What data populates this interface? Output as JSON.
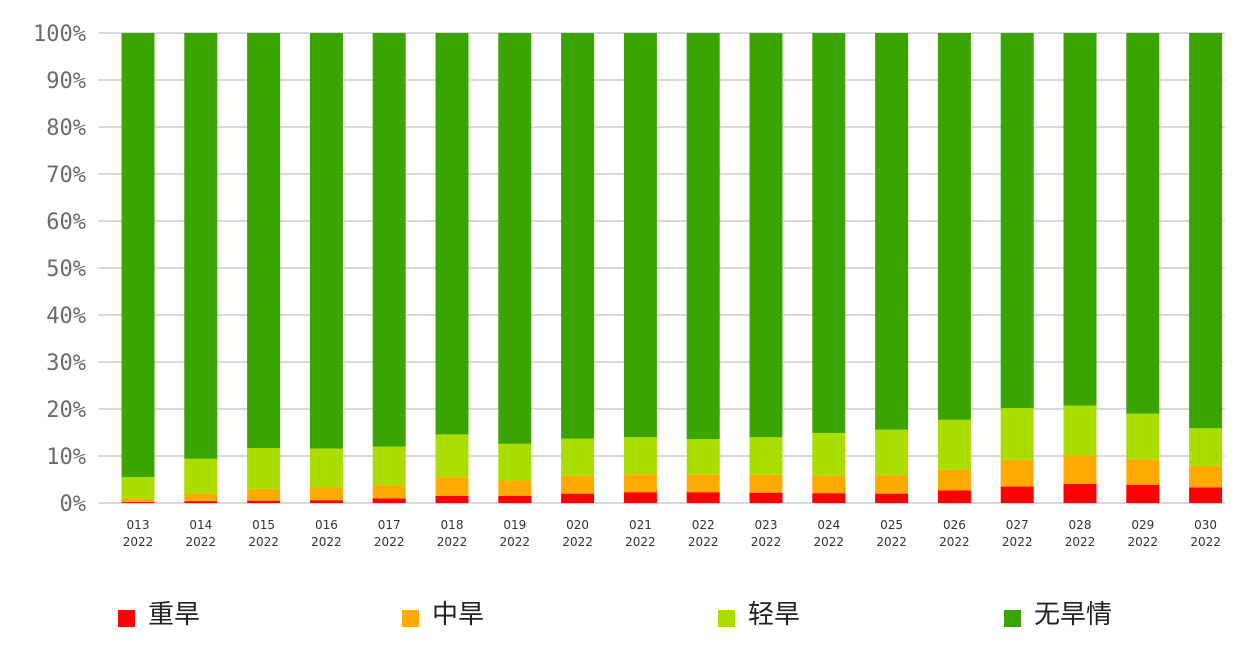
{
  "chart_data": {
    "type": "bar",
    "stacked": true,
    "percent": true,
    "categories": [
      [
        "013",
        "2022"
      ],
      [
        "014",
        "2022"
      ],
      [
        "015",
        "2022"
      ],
      [
        "016",
        "2022"
      ],
      [
        "017",
        "2022"
      ],
      [
        "018",
        "2022"
      ],
      [
        "019",
        "2022"
      ],
      [
        "020",
        "2022"
      ],
      [
        "021",
        "2022"
      ],
      [
        "022",
        "2022"
      ],
      [
        "023",
        "2022"
      ],
      [
        "024",
        "2022"
      ],
      [
        "025",
        "2022"
      ],
      [
        "026",
        "2022"
      ],
      [
        "027",
        "2022"
      ],
      [
        "028",
        "2022"
      ],
      [
        "029",
        "2022"
      ],
      [
        "030",
        "2022"
      ]
    ],
    "series": [
      {
        "name": "重旱",
        "color": "#ff0000",
        "values": [
          0.2,
          0.4,
          0.5,
          0.6,
          1.0,
          1.5,
          1.5,
          2.0,
          2.3,
          2.3,
          2.2,
          2.1,
          2.0,
          2.7,
          3.5,
          4.1,
          3.9,
          3.3
        ]
      },
      {
        "name": "中旱",
        "color": "#ffaa00",
        "values": [
          0.8,
          1.6,
          2.5,
          2.6,
          2.8,
          4.0,
          3.3,
          3.8,
          3.8,
          3.7,
          3.8,
          3.7,
          3.9,
          4.4,
          5.7,
          6.0,
          5.4,
          4.6
        ]
      },
      {
        "name": "轻旱",
        "color": "#aadd00",
        "values": [
          4.5,
          7.4,
          8.7,
          8.4,
          8.2,
          9.1,
          7.8,
          7.9,
          7.9,
          7.6,
          8.0,
          9.1,
          9.7,
          10.6,
          11.0,
          10.6,
          9.7,
          8.0
        ]
      },
      {
        "name": "无旱情",
        "color": "#3aa500",
        "values": [
          94.5,
          90.6,
          88.3,
          88.4,
          88.0,
          85.4,
          87.4,
          86.3,
          86.0,
          86.4,
          86.0,
          85.1,
          84.4,
          82.3,
          79.8,
          79.3,
          81.0,
          84.1
        ]
      }
    ],
    "ylim": [
      0,
      100
    ],
    "yticks": [
      "0%",
      "10%",
      "20%",
      "30%",
      "40%",
      "50%",
      "60%",
      "70%",
      "80%",
      "90%",
      "100%"
    ],
    "grid": true,
    "legend_position": "bottom"
  }
}
